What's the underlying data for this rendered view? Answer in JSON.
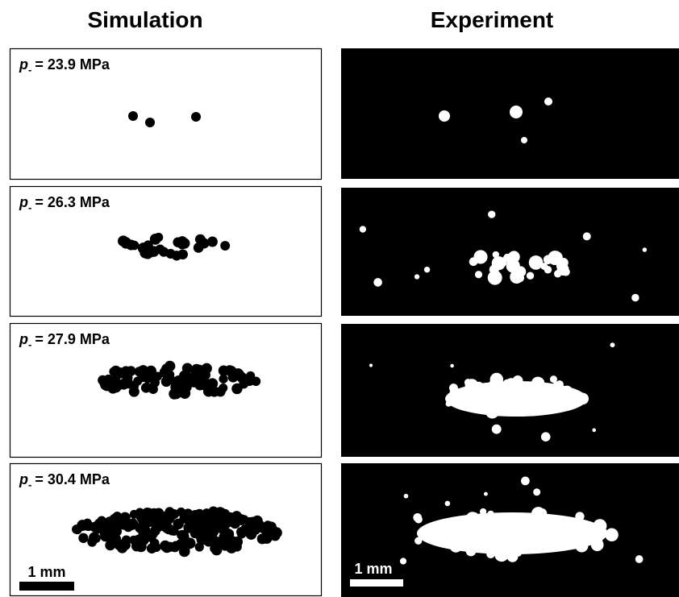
{
  "header": {
    "left": "Simulation",
    "right": "Experiment"
  },
  "panels": [
    {
      "symbol": "p",
      "subscript": "-",
      "value": "= 23.9 MPa"
    },
    {
      "symbol": "p",
      "subscript": "-",
      "value": "= 26.3 MPa"
    },
    {
      "symbol": "p",
      "subscript": "-",
      "value": "= 27.9 MPa"
    },
    {
      "symbol": "p",
      "subscript": "-",
      "value": "= 30.4 MPa"
    }
  ],
  "scale_bar": {
    "left": "1 mm",
    "right": "1 mm"
  }
}
